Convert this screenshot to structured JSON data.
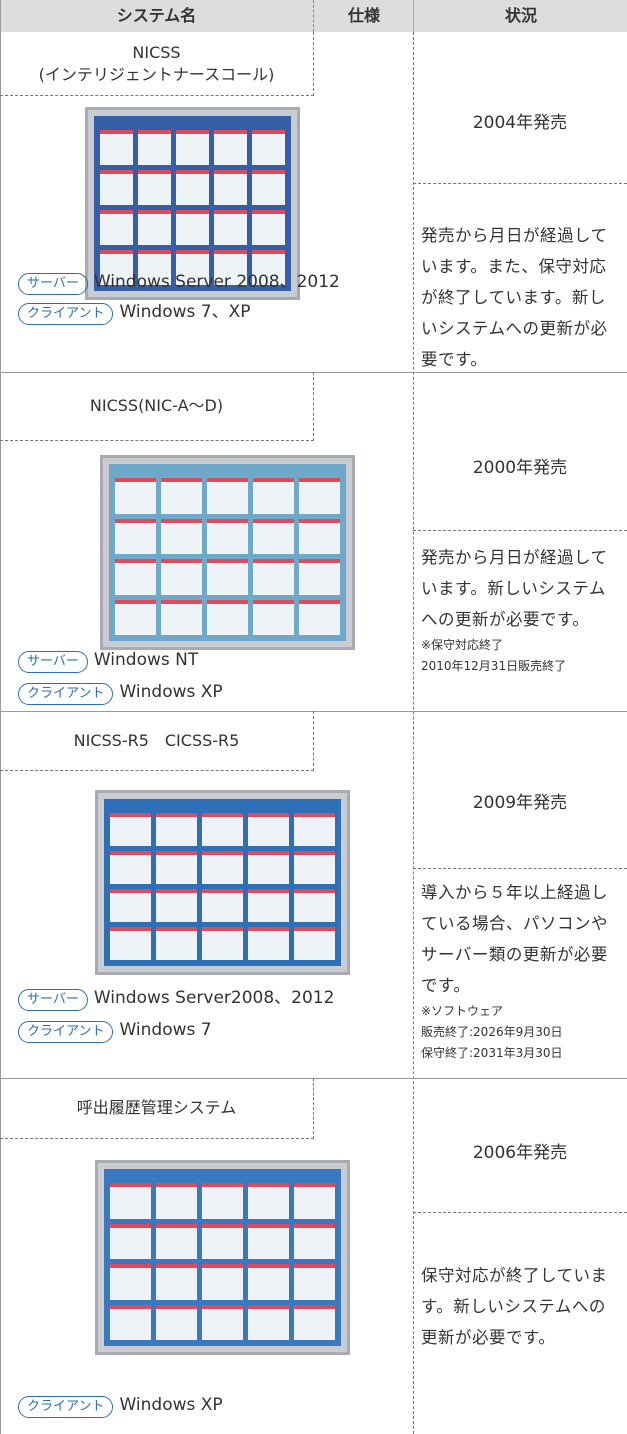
{
  "header": {
    "columns": [
      "システム名",
      "仕様",
      "状況"
    ]
  },
  "systems": [
    {
      "name_lines": [
        "NICSS",
        "(インテリジェントナースコール)"
      ],
      "specs": [
        {
          "label": "サーバー",
          "value": "Windows Server 2008、2012"
        },
        {
          "label": "クライアント",
          "value": "Windows 7、XP"
        }
      ],
      "release": "2004年発売",
      "description": "発売から月日が経過しています。また、保守対応が終了しています。新しいシステムへの更新が必要です。",
      "notes": []
    },
    {
      "name_lines": [
        "NICSS(NIC-A〜D)"
      ],
      "specs": [
        {
          "label": "サーバー",
          "value": "Windows NT"
        },
        {
          "label": "クライアント",
          "value": "Windows XP"
        }
      ],
      "release": "2000年発売",
      "description": "発売から月日が経過しています。新しいシステムへの更新が必要です。",
      "notes": [
        "※保守対応終了",
        "2010年12月31日販売終了"
      ]
    },
    {
      "name_lines": [
        "NICSS-R5　CICSS-R5"
      ],
      "specs": [
        {
          "label": "サーバー",
          "value": "Windows Server2008、2012"
        },
        {
          "label": "クライアント",
          "value": "Windows 7"
        }
      ],
      "release": "2009年発売",
      "description": "導入から５年以上経過している場合、パソコンやサーバー類の更新が必要です。",
      "notes": [
        "※ソフトウェア",
        "販売終了:2026年9月30日",
        "保守終了:2031年3月30日"
      ]
    },
    {
      "name_lines": [
        "呼出履歴管理システム"
      ],
      "specs": [
        {
          "label": "クライアント",
          "value": "Windows XP"
        }
      ],
      "release": "2006年発売",
      "description": "保守対応が終了しています。新しいシステムへの更新が必要です。",
      "notes": []
    }
  ]
}
